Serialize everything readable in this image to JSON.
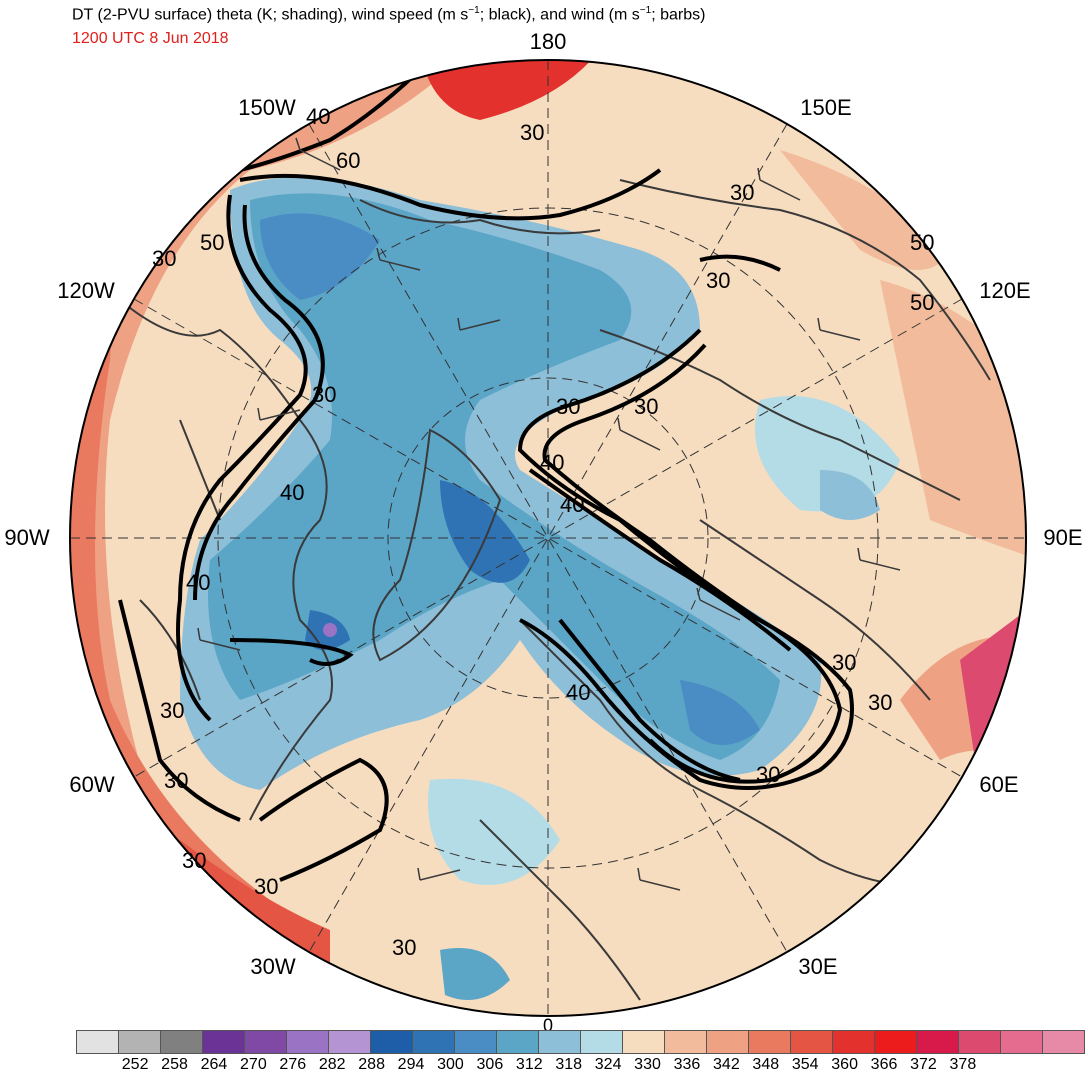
{
  "header": {
    "title_pre": "DT (2-PVU surface) theta (K; shading), wind speed (m s",
    "sup1": "−1",
    "title_mid": "; black), and wind (m s",
    "sup2": "−1",
    "title_post": "; barbs)",
    "valid_time": "1200 UTC 8 Jun 2018"
  },
  "map": {
    "projection": "north polar stereographic",
    "longitude_labels": {
      "top": "180",
      "upper_left": "150W",
      "upper_right": "150E",
      "left_upper": "120W",
      "right_upper": "120E",
      "left": "90W",
      "right": "90E",
      "left_lower": "60W",
      "right_lower": "60E",
      "bottom_left": "30W",
      "bottom_right": "30E",
      "bottom": "0"
    },
    "wind_speed_contour_labels": [
      "40",
      "30",
      "60",
      "30",
      "30",
      "50",
      "30",
      "30",
      "30",
      "30",
      "40",
      "40",
      "40",
      "40",
      "30",
      "30",
      "30",
      "40",
      "30",
      "30",
      "30",
      "30",
      "30",
      "50",
      "50"
    ]
  },
  "colorbar": {
    "colors": [
      "#e2e2e2",
      "#b3b3b3",
      "#808080",
      "#6c3396",
      "#8149a6",
      "#9a73c4",
      "#b594d3",
      "#1e5ea8",
      "#2f73b5",
      "#4a8cc4",
      "#5ba5c7",
      "#8ebfd8",
      "#b4dce6",
      "#f7ddc0",
      "#f2bc9c",
      "#eea283",
      "#e97a60",
      "#e55544",
      "#e3322d",
      "#ed1c1c",
      "#d71a4a",
      "#dc4a6f",
      "#e56c8f",
      "#e68aa8"
    ],
    "labels": [
      "252",
      "258",
      "264",
      "270",
      "276",
      "282",
      "288",
      "294",
      "300",
      "306",
      "312",
      "318",
      "324",
      "330",
      "336",
      "342",
      "348",
      "354",
      "360",
      "366",
      "372",
      "378"
    ]
  }
}
